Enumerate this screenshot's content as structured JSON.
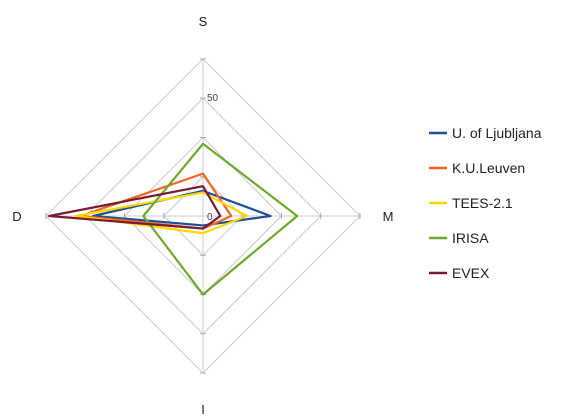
{
  "chart_data": {
    "type": "radar",
    "axes": [
      "S",
      "M",
      "I",
      "D"
    ],
    "tick_labels": [
      "0",
      "50"
    ],
    "r_max": 100,
    "grid_levels": [
      25,
      50,
      75,
      100
    ],
    "legend_placement": "right",
    "series": [
      {
        "name": "U. of Ljubljana",
        "color": "#1f4e99",
        "values": {
          "S": 16,
          "M": 43,
          "I": 6,
          "D": 70
        }
      },
      {
        "name": "K.U.Leuven",
        "color": "#f26522",
        "values": {
          "S": 27,
          "M": 18,
          "I": 8,
          "D": 78
        }
      },
      {
        "name": "TEES-2.1",
        "color": "#ffd700",
        "values": {
          "S": 15,
          "M": 28,
          "I": 11,
          "D": 81
        }
      },
      {
        "name": "IRISA",
        "color": "#6ea82c",
        "values": {
          "S": 46,
          "M": 60,
          "I": 50,
          "D": 38
        }
      },
      {
        "name": "EVEX",
        "color": "#7a1a33",
        "values": {
          "S": 19,
          "M": 11,
          "I": 8,
          "D": 98
        }
      }
    ]
  }
}
